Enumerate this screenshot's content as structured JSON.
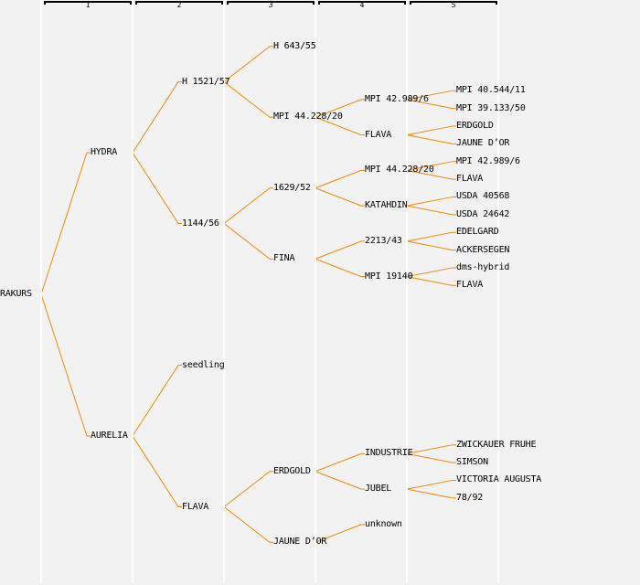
{
  "title": "pedigree",
  "colors": {
    "background": "#f2f2f2",
    "edge": "#ee8a10",
    "separator": "#ffffff",
    "text": "#000000"
  },
  "columns": [
    "1",
    "2",
    "3",
    "4",
    "5"
  ],
  "root": {
    "label": "RAKURS",
    "children": [
      {
        "label": "HYDRA",
        "children": [
          {
            "label": "H 1521/57",
            "children": [
              {
                "label": "H 643/55",
                "children": []
              },
              {
                "label": "MPI 44.228/20",
                "children": [
                  {
                    "label": "MPI 42.989/6",
                    "children": [
                      {
                        "label": "MPI 40.544/11",
                        "children": []
                      },
                      {
                        "label": "MPI 39.133/50",
                        "children": []
                      }
                    ]
                  },
                  {
                    "label": "FLAVA",
                    "children": [
                      {
                        "label": "ERDGOLD",
                        "children": []
                      },
                      {
                        "label": "JAUNE D’OR",
                        "children": []
                      }
                    ]
                  }
                ]
              }
            ]
          },
          {
            "label": "1144/56",
            "children": [
              {
                "label": "1629/52",
                "children": [
                  {
                    "label": "MPI 44.228/20",
                    "children": [
                      {
                        "label": "MPI 42.989/6",
                        "children": []
                      },
                      {
                        "label": "FLAVA",
                        "children": []
                      }
                    ]
                  },
                  {
                    "label": "KATAHDIN",
                    "children": [
                      {
                        "label": "USDA 40568",
                        "children": []
                      },
                      {
                        "label": "USDA 24642",
                        "children": []
                      }
                    ]
                  }
                ]
              },
              {
                "label": "FINA",
                "children": [
                  {
                    "label": "2213/43",
                    "children": [
                      {
                        "label": "EDELGARD",
                        "children": []
                      },
                      {
                        "label": "ACKERSEGEN",
                        "children": []
                      }
                    ]
                  },
                  {
                    "label": "MPI 19140",
                    "children": [
                      {
                        "label": "dms-hybrid",
                        "children": []
                      },
                      {
                        "label": "FLAVA",
                        "children": []
                      }
                    ]
                  }
                ]
              }
            ]
          }
        ]
      },
      {
        "label": "AURELIA",
        "children": [
          {
            "label": "seedling",
            "children": []
          },
          {
            "label": "FLAVA",
            "children": [
              {
                "label": "ERDGOLD",
                "children": [
                  {
                    "label": "INDUSTRIE",
                    "children": [
                      {
                        "label": "ZWICKAUER FRUHE",
                        "children": []
                      },
                      {
                        "label": "SIMSON",
                        "children": []
                      }
                    ]
                  },
                  {
                    "label": "JUBEL",
                    "children": [
                      {
                        "label": "VICTORIA AUGUSTA",
                        "children": []
                      },
                      {
                        "label": "78/92",
                        "children": []
                      }
                    ]
                  }
                ]
              },
              {
                "label": "JAUNE D’OR",
                "children": [
                  {
                    "label": "unknown",
                    "children": []
                  }
                ]
              }
            ]
          }
        ]
      }
    ]
  }
}
